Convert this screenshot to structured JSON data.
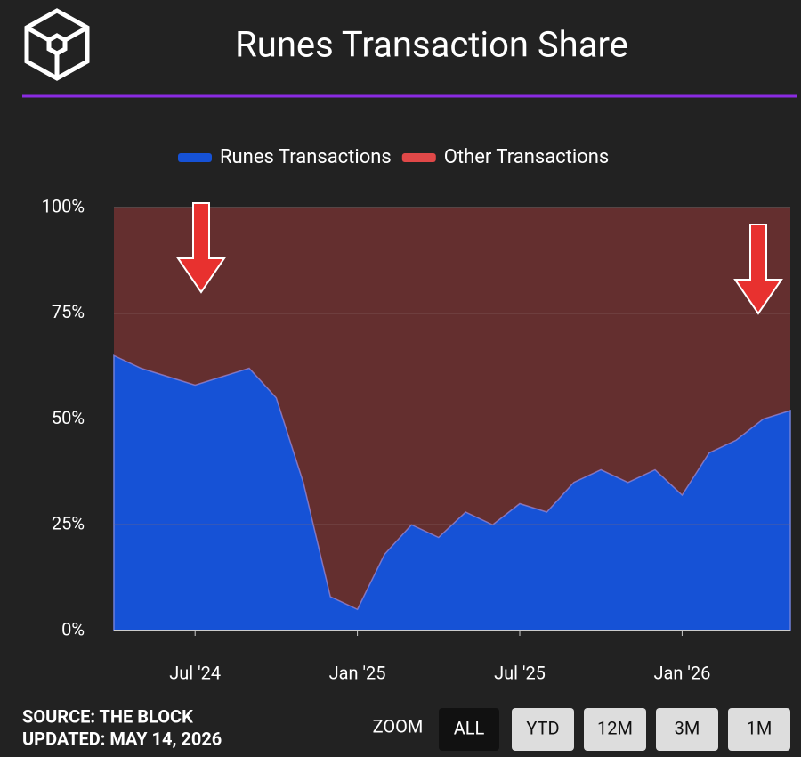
{
  "header": {
    "title": "Runes Transaction Share"
  },
  "chart_data": {
    "type": "area",
    "stacked": true,
    "x": [
      "2024-04",
      "2024-05",
      "2024-06",
      "2024-07",
      "2024-08",
      "2024-09",
      "2024-10",
      "2024-11",
      "2024-12",
      "2025-01",
      "2025-02",
      "2025-03",
      "2025-04",
      "2025-05",
      "2025-06",
      "2025-07",
      "2025-08",
      "2025-09",
      "2025-10",
      "2025-11",
      "2025-12",
      "2026-01",
      "2026-02",
      "2026-03",
      "2026-04",
      "2026-05"
    ],
    "series": [
      {
        "name": "Runes Transactions",
        "color": "#1652d6",
        "values": [
          65,
          62,
          60,
          58,
          60,
          62,
          55,
          35,
          8,
          5,
          18,
          25,
          22,
          28,
          25,
          30,
          28,
          35,
          38,
          35,
          38,
          32,
          42,
          45,
          50,
          52
        ]
      },
      {
        "name": "Other Transactions",
        "color": "#e04848",
        "values": [
          35,
          38,
          40,
          42,
          40,
          38,
          45,
          65,
          92,
          95,
          82,
          75,
          78,
          72,
          75,
          70,
          72,
          65,
          62,
          65,
          62,
          68,
          58,
          55,
          50,
          48
        ]
      }
    ],
    "xlim": [
      "2024-04",
      "2026-05"
    ],
    "xticks": [
      {
        "value": "2024-07",
        "label": "Jul '24"
      },
      {
        "value": "2025-01",
        "label": "Jan '25"
      },
      {
        "value": "2025-07",
        "label": "Jul '25"
      },
      {
        "value": "2026-01",
        "label": "Jan '26"
      }
    ],
    "ylim": [
      0,
      100
    ],
    "yticks": [
      {
        "value": 0,
        "label": "0%"
      },
      {
        "value": 25,
        "label": "25%"
      },
      {
        "value": 50,
        "label": "50%"
      },
      {
        "value": 75,
        "label": "75%"
      },
      {
        "value": 100,
        "label": "100%"
      }
    ],
    "grid": true,
    "legend": "top"
  },
  "footer": {
    "source": "SOURCE: THE BLOCK",
    "updated": "UPDATED: MAY 14, 2026"
  },
  "zoom": {
    "label": "ZOOM",
    "buttons": [
      "ALL",
      "YTD",
      "12M",
      "3M",
      "1M"
    ],
    "active": 0
  }
}
